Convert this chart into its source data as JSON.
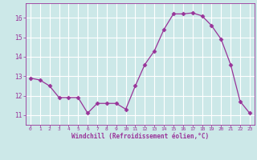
{
  "x": [
    0,
    1,
    2,
    3,
    4,
    5,
    6,
    7,
    8,
    9,
    10,
    11,
    12,
    13,
    14,
    15,
    16,
    17,
    18,
    19,
    20,
    21,
    22,
    23
  ],
  "y": [
    12.9,
    12.8,
    12.5,
    11.9,
    11.9,
    11.9,
    11.1,
    11.6,
    11.6,
    11.6,
    11.3,
    12.5,
    13.6,
    14.3,
    15.4,
    16.2,
    16.2,
    16.25,
    16.1,
    15.6,
    14.9,
    13.6,
    11.7,
    11.1
  ],
  "line_color": "#993399",
  "marker": "D",
  "marker_size": 2.5,
  "bg_color": "#cce8e8",
  "grid_color": "#ffffff",
  "xlabel": "Windchill (Refroidissement éolien,°C)",
  "xlabel_color": "#993399",
  "tick_color": "#993399",
  "ylim": [
    10.5,
    16.75
  ],
  "yticks": [
    11,
    12,
    13,
    14,
    15,
    16
  ],
  "xlim": [
    -0.5,
    23.5
  ],
  "xticks": [
    0,
    1,
    2,
    3,
    4,
    5,
    6,
    7,
    8,
    9,
    10,
    11,
    12,
    13,
    14,
    15,
    16,
    17,
    18,
    19,
    20,
    21,
    22,
    23
  ]
}
